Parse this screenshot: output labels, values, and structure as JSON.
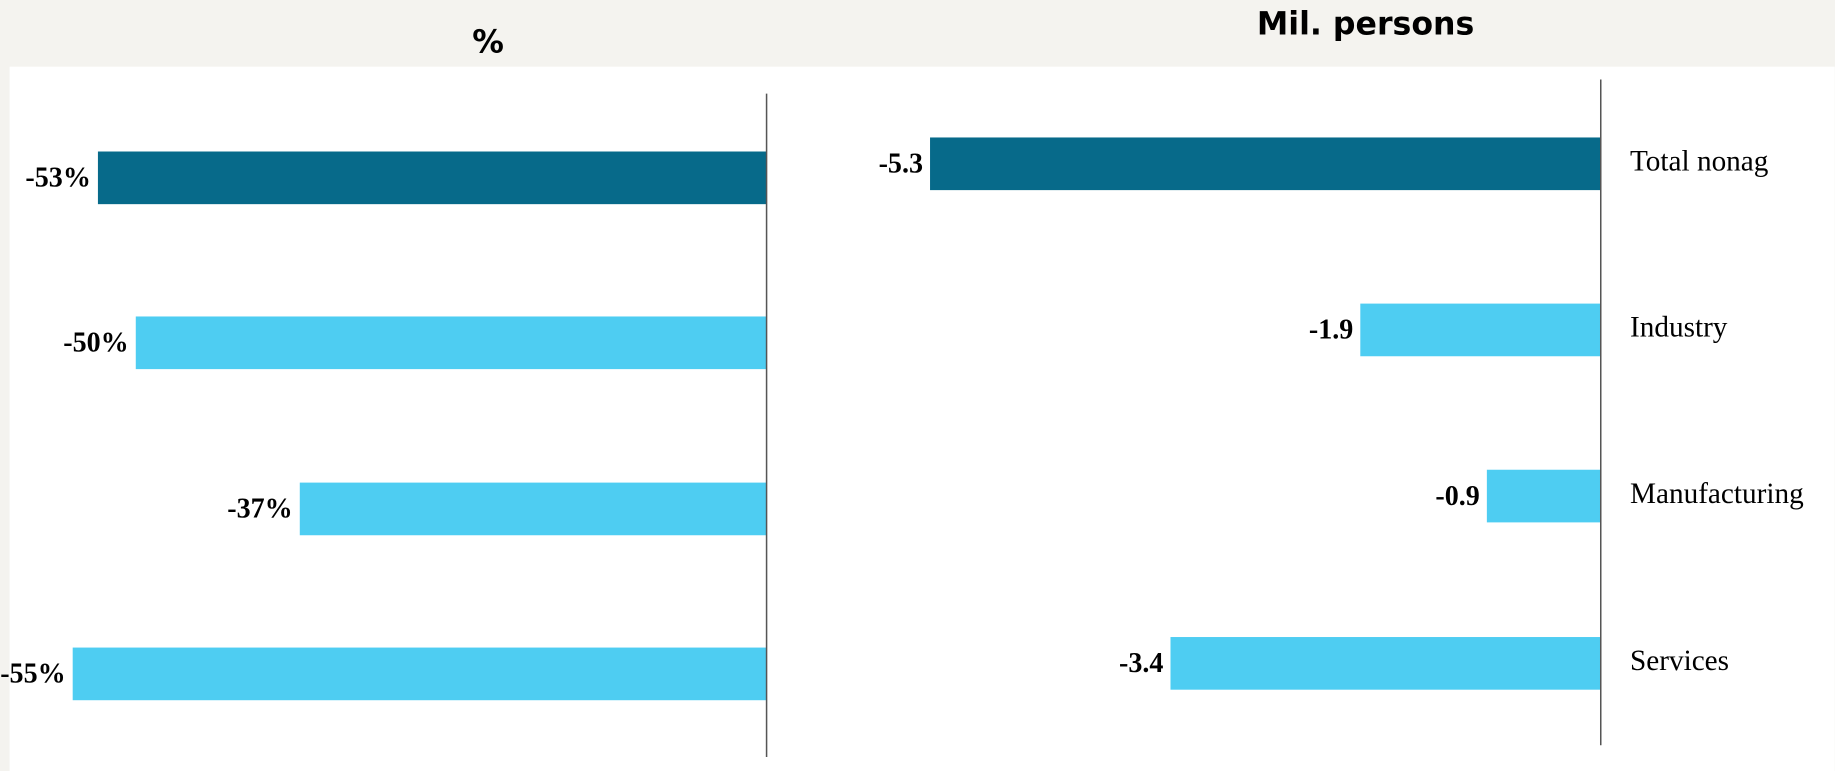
{
  "chart_data": [
    {
      "type": "bar",
      "orientation": "horizontal",
      "title": "%",
      "values": [
        -53,
        -50,
        -37,
        -55
      ],
      "value_labels": [
        "-53%",
        "-50%",
        "-37%",
        "-55%"
      ],
      "colors": [
        "#076a8a",
        "#4ecdf2",
        "#4ecdf2",
        "#4ecdf2"
      ],
      "xlim": [
        -60,
        0
      ]
    },
    {
      "type": "bar",
      "orientation": "horizontal",
      "title": "Mil. persons",
      "categories": [
        "Total nonag",
        "Industry",
        "Manufacturing",
        "Services"
      ],
      "values": [
        -5.3,
        -1.9,
        -0.9,
        -3.4
      ],
      "colors": [
        "#076a8a",
        "#4ecdf2",
        "#4ecdf2",
        "#4ecdf2"
      ],
      "xlim": [
        -6,
        0
      ]
    }
  ]
}
